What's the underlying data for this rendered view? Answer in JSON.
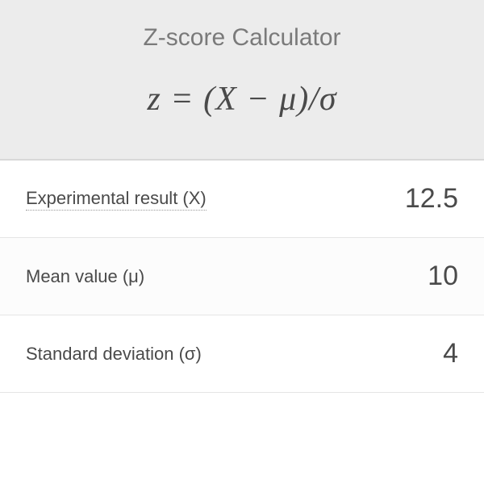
{
  "header": {
    "title": "Z-score Calculator",
    "formula": "z = (X − μ)/σ"
  },
  "rows": [
    {
      "label": "Experimental result (X)",
      "value": "12.5",
      "underlined": true
    },
    {
      "label": "Mean value (μ)",
      "value": "10",
      "underlined": false
    },
    {
      "label": "Standard deviation (σ)",
      "value": "4",
      "underlined": false
    }
  ],
  "styling": {
    "header_bg": "#ececec",
    "title_color": "#7a7a7a",
    "title_fontsize": 30,
    "formula_color": "#4a4a4a",
    "formula_fontsize": 42,
    "label_color": "#4a4a4a",
    "label_fontsize": 22,
    "value_color": "#4a4a4a",
    "value_fontsize": 34,
    "border_color": "#e5e5e5"
  }
}
